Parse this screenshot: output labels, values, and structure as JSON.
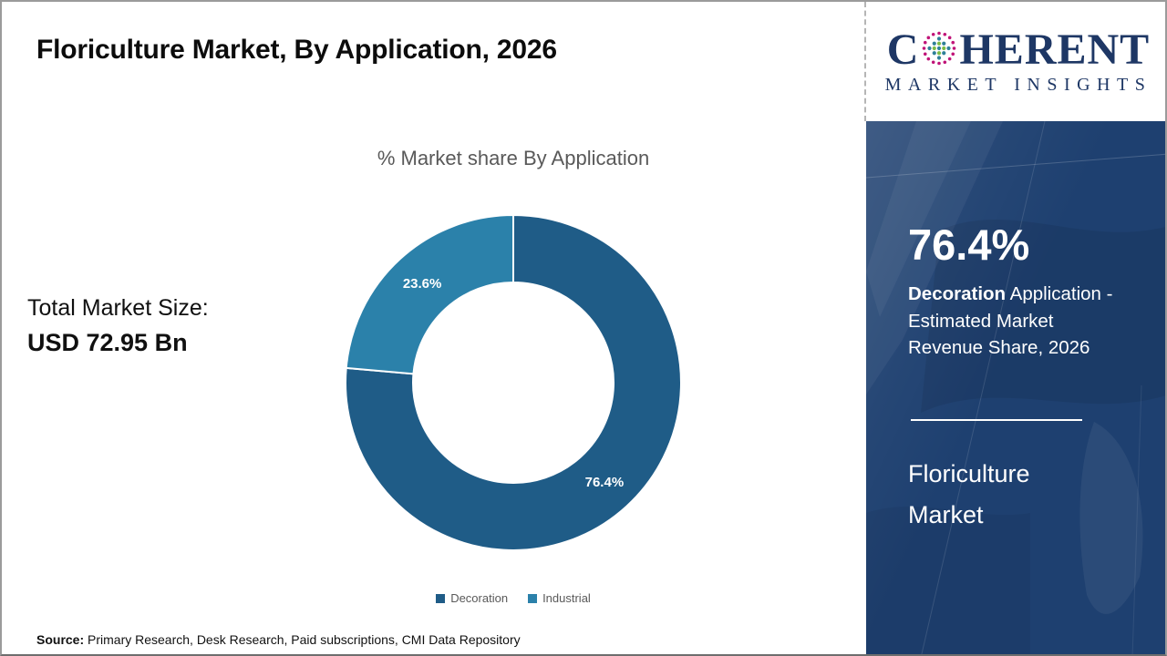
{
  "header": {
    "title": "Floriculture Market, By Application, 2026"
  },
  "brand": {
    "logo_c": "C",
    "logo_rest": "HERENT",
    "logo_sub": "MARKET INSIGHTS",
    "logo_color": "#1e3765"
  },
  "chart_data": {
    "type": "pie",
    "variant": "donut",
    "title": "% Market share By Application",
    "categories": [
      "Decoration",
      "Industrial"
    ],
    "values": [
      76.4,
      23.6
    ],
    "labels": [
      "76.4%",
      "23.6%"
    ],
    "colors": [
      "#1f5c87",
      "#2b81aa"
    ],
    "legend_position": "bottom",
    "start_angle_deg": 0,
    "direction": "clockwise"
  },
  "left_stat": {
    "label": "Total Market Size:",
    "value": "USD 72.95 Bn"
  },
  "sidebar": {
    "stat_value": "76.4%",
    "desc_bold": "Decoration",
    "desc_line1_rest": " Application -",
    "desc_line2": "Estimated Market",
    "desc_line3": "Revenue Share, 2026",
    "product_line1": "Floriculture",
    "product_line2": "Market",
    "panel_color": "#1e4070"
  },
  "source": {
    "label": "Source:",
    "text": " Primary Research, Desk Research, Paid subscriptions, CMI Data Repository"
  }
}
